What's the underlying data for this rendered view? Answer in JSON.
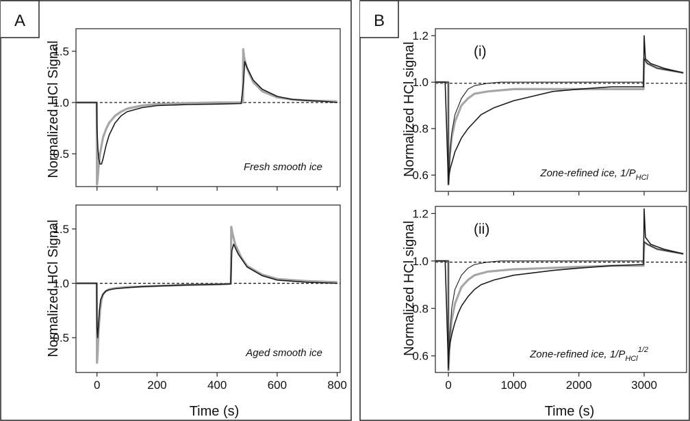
{
  "chart_data": [
    {
      "type": "line",
      "panel": "A",
      "subplot": "top",
      "annotation": "Fresh smooth ice",
      "ylabel": "Normalized HCl Signal",
      "xlabel": "Time (s)",
      "xlim": [
        -70,
        810
      ],
      "ylim": [
        0.18,
        1.72
      ],
      "xticks": [
        "0",
        "200",
        "400",
        "600",
        "800"
      ],
      "yticks": [
        "0.5",
        "1.0",
        "1.5"
      ],
      "xtick_values": [
        0,
        200,
        400,
        600,
        800
      ],
      "ytick_values": [
        0.5,
        1.0,
        1.5
      ],
      "show_xtick_labels": false,
      "colors": {
        "data": "#1a1a1a",
        "fit": "#a6a6a6",
        "reference": "#1a1a1a"
      },
      "reference_line": 1.0,
      "series": [
        {
          "role": "data",
          "x": [
            -70,
            -40,
            -10,
            -1,
            0,
            3,
            6,
            10,
            15,
            20,
            30,
            40,
            60,
            80,
            100,
            150,
            200,
            300,
            400,
            480,
            488,
            492,
            500,
            520,
            550,
            600,
            650,
            700,
            760,
            800
          ],
          "y": [
            1.0,
            1.0,
            1.0,
            1.0,
            0.75,
            0.55,
            0.45,
            0.4,
            0.4,
            0.45,
            0.58,
            0.68,
            0.8,
            0.87,
            0.91,
            0.95,
            0.97,
            0.98,
            0.985,
            0.99,
            1.2,
            1.4,
            1.34,
            1.22,
            1.13,
            1.06,
            1.03,
            1.02,
            1.01,
            1.0
          ]
        },
        {
          "role": "fit",
          "x": [
            -70,
            -1,
            0,
            2,
            5,
            10,
            20,
            30,
            40,
            60,
            80,
            100,
            150,
            200,
            300,
            400,
            486,
            487,
            490,
            500,
            520,
            550,
            600,
            650,
            700,
            800
          ],
          "y": [
            1.0,
            1.0,
            0.2,
            0.25,
            0.36,
            0.5,
            0.66,
            0.74,
            0.8,
            0.87,
            0.91,
            0.94,
            0.97,
            0.985,
            0.995,
            1.0,
            1.0,
            1.52,
            1.44,
            1.33,
            1.2,
            1.11,
            1.05,
            1.03,
            1.02,
            1.01
          ]
        }
      ]
    },
    {
      "type": "line",
      "panel": "A",
      "subplot": "bottom",
      "annotation": "Aged smooth ice",
      "ylabel": "Normalized HCl Signal",
      "xlabel": "Time (s)",
      "xlim": [
        -70,
        810
      ],
      "ylim": [
        0.18,
        1.72
      ],
      "xticks": [
        "0",
        "200",
        "400",
        "600",
        "800"
      ],
      "yticks": [
        "0.5",
        "1.0",
        "1.5"
      ],
      "xtick_values": [
        0,
        200,
        400,
        600,
        800
      ],
      "ytick_values": [
        0.5,
        1.0,
        1.5
      ],
      "show_xtick_labels": true,
      "colors": {
        "data": "#1a1a1a",
        "fit": "#a6a6a6",
        "reference": "#1a1a1a"
      },
      "reference_line": 1.0,
      "series": [
        {
          "role": "data",
          "x": [
            -70,
            -1,
            0,
            2,
            5,
            8,
            12,
            20,
            30,
            40,
            60,
            100,
            150,
            200,
            300,
            400,
            445,
            449,
            455,
            470,
            500,
            550,
            600,
            650,
            700,
            800
          ],
          "y": [
            1.0,
            1.0,
            0.6,
            0.5,
            0.62,
            0.75,
            0.85,
            0.9,
            0.93,
            0.94,
            0.95,
            0.96,
            0.97,
            0.975,
            0.985,
            0.99,
            0.995,
            1.3,
            1.36,
            1.27,
            1.15,
            1.07,
            1.03,
            1.02,
            1.01,
            1.0
          ]
        },
        {
          "role": "fit",
          "x": [
            -70,
            -1,
            0,
            2,
            5,
            10,
            15,
            20,
            30,
            40,
            60,
            100,
            150,
            200,
            300,
            400,
            446,
            447,
            452,
            460,
            480,
            500,
            550,
            600,
            650,
            700,
            800
          ],
          "y": [
            1.0,
            1.0,
            0.27,
            0.35,
            0.55,
            0.75,
            0.85,
            0.9,
            0.93,
            0.945,
            0.955,
            0.965,
            0.97,
            0.975,
            0.985,
            0.99,
            0.995,
            1.52,
            1.45,
            1.36,
            1.24,
            1.16,
            1.08,
            1.04,
            1.03,
            1.02,
            1.01
          ]
        }
      ]
    },
    {
      "type": "line",
      "panel": "B",
      "subplot": "top",
      "annotation": "(i)",
      "caption": "Zone-refined ice, 1/P",
      "caption_sub": "HCl",
      "caption_sup": "",
      "ylabel": "Normalized HCl signal",
      "xlabel": "Time (s)",
      "xlim": [
        -200,
        3650
      ],
      "ylim": [
        0.53,
        1.23
      ],
      "xticks": [
        "0",
        "1000",
        "2000",
        "3000"
      ],
      "yticks": [
        "0.6",
        "0.8",
        "1.0",
        "1.2"
      ],
      "xtick_values": [
        0,
        1000,
        2000,
        3000
      ],
      "ytick_values": [
        0.6,
        0.8,
        1.0,
        1.2
      ],
      "show_xtick_labels": false,
      "colors": {
        "data": "#1a1a1a",
        "fit": "#a6a6a6",
        "fit2": "#1a1a1a",
        "reference": "#1a1a1a"
      },
      "reference_line": 0.995,
      "series": [
        {
          "role": "data",
          "x": [
            -200,
            -50,
            0,
            10,
            30,
            60,
            100,
            150,
            200,
            300,
            400,
            500,
            700,
            1000,
            1300,
            1600,
            2000,
            2500,
            2990,
            3000,
            3020,
            3100,
            3300,
            3600
          ],
          "y": [
            1.0,
            1.0,
            0.56,
            0.6,
            0.63,
            0.66,
            0.7,
            0.73,
            0.76,
            0.8,
            0.83,
            0.86,
            0.89,
            0.92,
            0.94,
            0.96,
            0.97,
            0.98,
            0.98,
            1.2,
            1.1,
            1.08,
            1.06,
            1.04
          ]
        },
        {
          "role": "fit",
          "x": [
            -200,
            -1,
            0,
            20,
            50,
            100,
            200,
            300,
            400,
            600,
            800,
            1000,
            1500,
            2000,
            2500,
            2990,
            3000,
            3050,
            3200,
            3600
          ],
          "y": [
            1.0,
            1.0,
            0.56,
            0.68,
            0.76,
            0.83,
            0.9,
            0.93,
            0.95,
            0.96,
            0.965,
            0.97,
            0.97,
            0.97,
            0.97,
            0.97,
            1.1,
            1.08,
            1.06,
            1.04
          ]
        },
        {
          "role": "fit2",
          "x": [
            -200,
            -1,
            0,
            20,
            50,
            100,
            200,
            300,
            400,
            600,
            800,
            1000,
            1500,
            2000,
            2500,
            2990,
            3000,
            3050,
            3200,
            3600
          ],
          "y": [
            1.0,
            1.0,
            0.56,
            0.68,
            0.78,
            0.86,
            0.93,
            0.97,
            0.985,
            0.995,
            1.0,
            1.0,
            1.0,
            1.0,
            1.0,
            1.0,
            1.1,
            1.08,
            1.06,
            1.04
          ]
        }
      ]
    },
    {
      "type": "line",
      "panel": "B",
      "subplot": "bottom",
      "annotation": "(ii)",
      "caption": "Zone-refined ice, 1/P",
      "caption_sub": "HCl",
      "caption_sup": "1/2",
      "ylabel": "Normalized HCl signal",
      "xlabel": "Time (s)",
      "xlim": [
        -200,
        3650
      ],
      "ylim": [
        0.53,
        1.23
      ],
      "xticks": [
        "0",
        "1000",
        "2000",
        "3000"
      ],
      "yticks": [
        "0.6",
        "0.8",
        "1.0",
        "1.2"
      ],
      "xtick_values": [
        0,
        1000,
        2000,
        3000
      ],
      "ytick_values": [
        0.6,
        0.8,
        1.0,
        1.2
      ],
      "show_xtick_labels": true,
      "colors": {
        "data": "#1a1a1a",
        "fit": "#a6a6a6",
        "fit2": "#1a1a1a",
        "reference": "#1a1a1a"
      },
      "reference_line": 0.995,
      "series": [
        {
          "role": "data",
          "x": [
            -200,
            -50,
            0,
            10,
            30,
            60,
            100,
            150,
            200,
            300,
            400,
            500,
            700,
            1000,
            1300,
            1600,
            2000,
            2500,
            2990,
            3000,
            3020,
            3100,
            3300,
            3600
          ],
          "y": [
            1.0,
            1.0,
            0.55,
            0.62,
            0.66,
            0.7,
            0.74,
            0.78,
            0.81,
            0.85,
            0.88,
            0.9,
            0.92,
            0.94,
            0.95,
            0.96,
            0.97,
            0.98,
            0.985,
            1.22,
            1.1,
            1.07,
            1.05,
            1.03
          ]
        },
        {
          "role": "fit",
          "x": [
            -200,
            -1,
            0,
            20,
            50,
            100,
            200,
            300,
            400,
            600,
            800,
            1000,
            1500,
            2000,
            2500,
            2990,
            3000,
            3050,
            3200,
            3600
          ],
          "y": [
            1.0,
            1.0,
            0.54,
            0.66,
            0.75,
            0.82,
            0.89,
            0.92,
            0.94,
            0.955,
            0.96,
            0.965,
            0.97,
            0.975,
            0.98,
            0.98,
            1.08,
            1.07,
            1.05,
            1.03
          ]
        },
        {
          "role": "fit2",
          "x": [
            -200,
            -1,
            0,
            20,
            50,
            100,
            200,
            300,
            400,
            600,
            800,
            1000,
            1500,
            2000,
            2500,
            2990,
            3000,
            3050,
            3200,
            3600
          ],
          "y": [
            1.0,
            1.0,
            0.54,
            0.68,
            0.8,
            0.88,
            0.94,
            0.97,
            0.985,
            0.995,
            1.0,
            1.0,
            1.0,
            1.0,
            1.0,
            1.0,
            1.08,
            1.07,
            1.05,
            1.03
          ]
        }
      ]
    }
  ],
  "panels": {
    "A": {
      "letter": "A",
      "xlabel": "Time (s)"
    },
    "B": {
      "letter": "B",
      "xlabel": "Time (s)"
    }
  }
}
